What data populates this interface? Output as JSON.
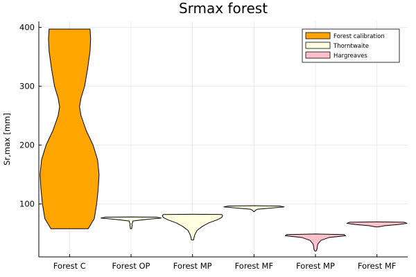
{
  "chart_data": {
    "type": "violin",
    "title": "Srmax forest",
    "xlabel": "",
    "ylabel": "Sr,max [mm]",
    "ylim": [
      10,
      410
    ],
    "yticks": [
      100,
      200,
      300,
      400
    ],
    "grid": true,
    "legend_position": "top-right",
    "categories": [
      "Forest C",
      "Forest OP",
      "Forest MP",
      "Forest MF",
      "Forest MP",
      "Forest MF"
    ],
    "legend": [
      {
        "label": "Forest calibration",
        "color": "#FFA500"
      },
      {
        "label": "Thorntwaite",
        "color": "#FFFFE0"
      },
      {
        "label": "Hargreaves",
        "color": "#FFC0CB"
      }
    ],
    "series": [
      {
        "category_index": 0,
        "group": "Forest calibration",
        "color": "#FFA500",
        "profile": [
          [
            58,
            0.62
          ],
          [
            75,
            0.82
          ],
          [
            100,
            0.9
          ],
          [
            125,
            0.95
          ],
          [
            150,
            0.98
          ],
          [
            175,
            0.93
          ],
          [
            200,
            0.78
          ],
          [
            225,
            0.55
          ],
          [
            250,
            0.38
          ],
          [
            265,
            0.33
          ],
          [
            280,
            0.38
          ],
          [
            300,
            0.5
          ],
          [
            330,
            0.6
          ],
          [
            360,
            0.68
          ],
          [
            380,
            0.7
          ],
          [
            397,
            0.68
          ]
        ]
      },
      {
        "category_index": 1,
        "group": "Thorntwaite",
        "color": "#FFFFE0",
        "profile": [
          [
            58,
            0.02
          ],
          [
            62,
            0.03
          ],
          [
            64,
            0.04
          ],
          [
            66,
            0.025
          ],
          [
            68,
            0.05
          ],
          [
            71,
            0.06
          ],
          [
            74,
            0.55
          ],
          [
            76,
            1.0
          ],
          [
            77.5,
            0.85
          ],
          [
            78,
            0.0
          ]
        ]
      },
      {
        "category_index": 2,
        "group": "Thorntwaite",
        "color": "#FFFFE0",
        "profile": [
          [
            39,
            0.04
          ],
          [
            43,
            0.05
          ],
          [
            48,
            0.08
          ],
          [
            55,
            0.15
          ],
          [
            62,
            0.33
          ],
          [
            68,
            0.55
          ],
          [
            73,
            0.82
          ],
          [
            77,
            0.97
          ],
          [
            80,
            1.0
          ],
          [
            82,
            0.97
          ],
          [
            82.5,
            0.0
          ]
        ]
      },
      {
        "category_index": 3,
        "group": "Thorntwaite",
        "color": "#FFFFE0",
        "profile": [
          [
            87,
            0.02
          ],
          [
            89,
            0.04
          ],
          [
            91,
            0.12
          ],
          [
            93,
            0.55
          ],
          [
            95,
            1.0
          ],
          [
            96.5,
            0.85
          ],
          [
            97,
            0.0
          ]
        ]
      },
      {
        "category_index": 4,
        "group": "Hargreaves",
        "color": "#FFC0CB",
        "profile": [
          [
            20,
            0.02
          ],
          [
            23,
            0.05
          ],
          [
            27,
            0.06
          ],
          [
            32,
            0.08
          ],
          [
            38,
            0.18
          ],
          [
            43,
            0.45
          ],
          [
            46,
            1.0
          ],
          [
            48,
            0.95
          ],
          [
            49,
            0.0
          ]
        ]
      },
      {
        "category_index": 5,
        "group": "Hargreaves",
        "color": "#FFC0CB",
        "profile": [
          [
            61,
            0.05
          ],
          [
            63,
            0.25
          ],
          [
            65,
            0.7
          ],
          [
            67,
            1.0
          ],
          [
            69,
            0.9
          ],
          [
            69.5,
            0.0
          ]
        ]
      }
    ]
  }
}
